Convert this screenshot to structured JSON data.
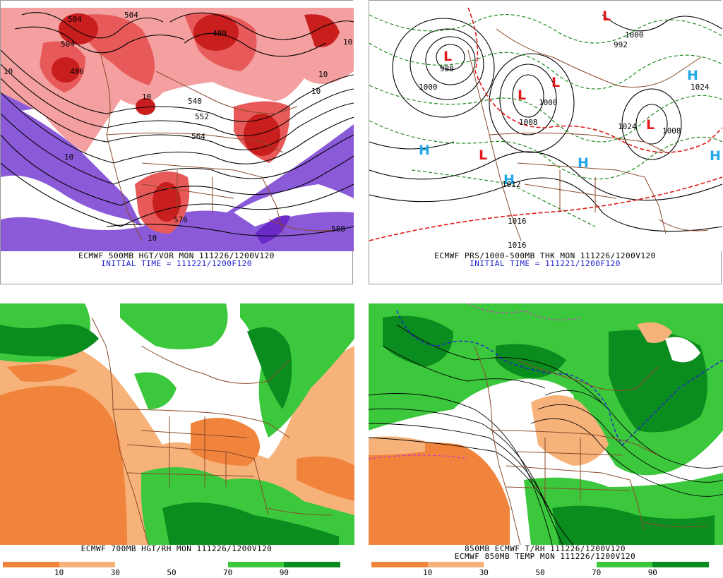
{
  "panels": {
    "top_left": {
      "caption_line1": "ECMWF 500MB HGT/VOR MON 111226/1200V120",
      "caption_line2": "INITIAL TIME = 111221/1200F120",
      "contour_labels": [
        "504",
        "486",
        "504",
        "480",
        "504",
        "540",
        "552",
        "564",
        "576",
        "588",
        "10",
        "10",
        "10",
        "10",
        "10",
        "10",
        "10"
      ]
    },
    "top_right": {
      "caption_line1": "ECMWF PRS/1000-500MB THK MON 111226/1200V120",
      "caption_line2": "INITIAL TIME = 111221/1200F120",
      "contour_labels": [
        "988",
        "1000",
        "1000",
        "1000",
        "1008",
        "1008",
        "1024",
        "1012",
        "1016",
        "1024",
        "992",
        "1016"
      ],
      "low_symbol": "L",
      "high_symbol": "H"
    },
    "bottom_left": {
      "caption_line1": "ECMWF 700MB HGT/RH MON 111226/1200V120",
      "scale_ticks": [
        "10",
        "30",
        "50",
        "70",
        "90"
      ]
    },
    "bottom_right": {
      "caption_line1": "850MB ECMWF T/RH 111226/1200V120",
      "caption_line2": "ECMWF 850MB TEMP MON 111226/1200V120",
      "scale_ticks": [
        "10",
        "30",
        "50",
        "70",
        "90"
      ]
    }
  },
  "colors": {
    "vorticity_high": "#c81e1e",
    "vorticity_mid": "#e85a5a",
    "vorticity_low": "#f4a0a0",
    "vorticity_negative": "#8a5ad8",
    "rh_dry_dark": "#f0843c",
    "rh_dry_light": "#f7b27a",
    "rh_moist_light": "#3cc83c",
    "rh_moist_dark": "#0a8c1e",
    "map_borders": "#8b4a2a",
    "low_marker": "#e01818",
    "high_marker": "#23a8e8",
    "thickness_cold": "#1e8c1e",
    "thickness_warm": "#e01818",
    "freezing_line": "#2323d0"
  }
}
